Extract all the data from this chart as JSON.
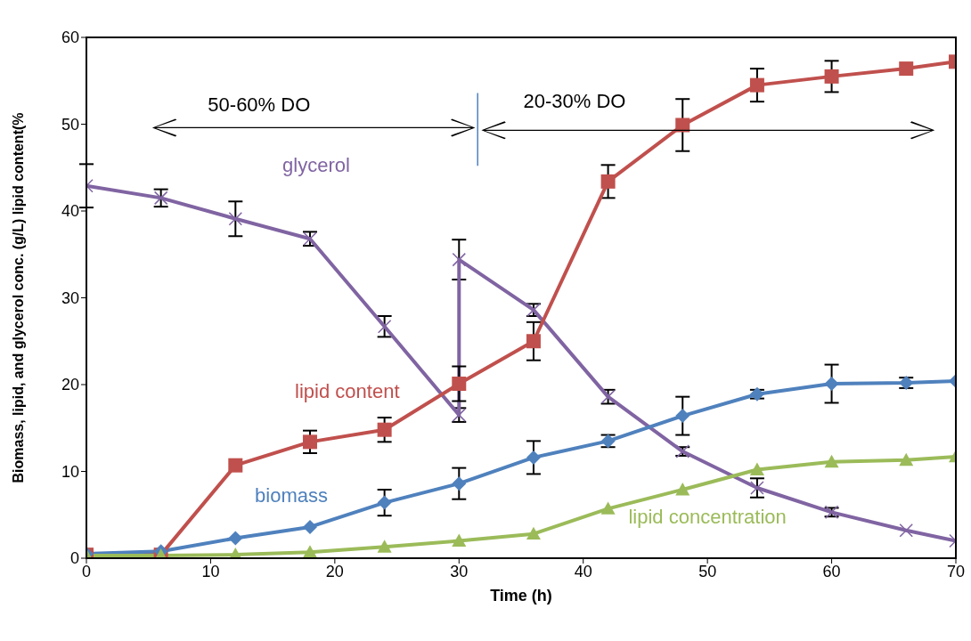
{
  "chart_data": {
    "type": "line",
    "xlabel": "Time (h)",
    "ylabel": "Biomass, lipid, and glycerol conc. (g/L) lipid content(%",
    "xlim": [
      0,
      70
    ],
    "xticks": [
      0,
      10,
      20,
      30,
      40,
      50,
      60,
      70
    ],
    "ylim": [
      0,
      60
    ],
    "yticks": [
      0,
      10,
      20,
      30,
      40,
      50,
      60
    ],
    "grid": false,
    "legend": false,
    "annotations": [
      "50-60% DO",
      "20-30% DO"
    ],
    "series": [
      {
        "name": "glycerol",
        "color": "#8064a2",
        "marker": "cross",
        "x": [
          0,
          6,
          12,
          18,
          24,
          30,
          30,
          36,
          42,
          48,
          54,
          60,
          66,
          70
        ],
        "values": [
          42.9,
          41.5,
          39.1,
          36.8,
          26.7,
          16.5,
          34.4,
          28.6,
          18.6,
          12.3,
          8.1,
          5.3,
          3.2,
          2.0
        ],
        "errors": [
          2.5,
          1.0,
          2.0,
          0.8,
          1.2,
          0.8,
          2.3,
          0.7,
          0.8,
          0.5,
          1.1,
          0.5,
          null,
          null
        ]
      },
      {
        "name": "lipid content",
        "color": "#c0504d",
        "marker": "square",
        "x": [
          0,
          6,
          12,
          18,
          24,
          30,
          36,
          42,
          48,
          54,
          60,
          66,
          70
        ],
        "values": [
          0.4,
          0.4,
          10.7,
          13.4,
          14.8,
          20.1,
          25.0,
          43.4,
          49.9,
          54.5,
          55.5,
          56.4,
          57.2
        ],
        "errors": [
          null,
          null,
          null,
          1.3,
          1.4,
          2.0,
          2.2,
          1.9,
          3.0,
          1.9,
          1.8,
          null,
          null
        ]
      },
      {
        "name": "biomass",
        "color": "#4f81bd",
        "marker": "diamond",
        "x": [
          0,
          6,
          12,
          18,
          24,
          30,
          36,
          42,
          48,
          54,
          60,
          66,
          70
        ],
        "values": [
          0.5,
          0.8,
          2.3,
          3.6,
          6.4,
          8.6,
          11.6,
          13.5,
          16.4,
          18.9,
          20.1,
          20.2,
          20.4
        ],
        "errors": [
          null,
          null,
          null,
          null,
          1.5,
          1.8,
          1.9,
          0.7,
          2.2,
          0.5,
          2.2,
          0.6,
          null
        ]
      },
      {
        "name": "lipid concentration",
        "color": "#9bbb59",
        "marker": "triangle",
        "x": [
          0,
          6,
          12,
          18,
          24,
          30,
          36,
          42,
          48,
          54,
          60,
          66,
          70
        ],
        "values": [
          0.3,
          0.3,
          0.4,
          0.7,
          1.3,
          2.0,
          2.8,
          5.7,
          7.9,
          10.2,
          11.1,
          11.3,
          11.7
        ]
      }
    ]
  }
}
